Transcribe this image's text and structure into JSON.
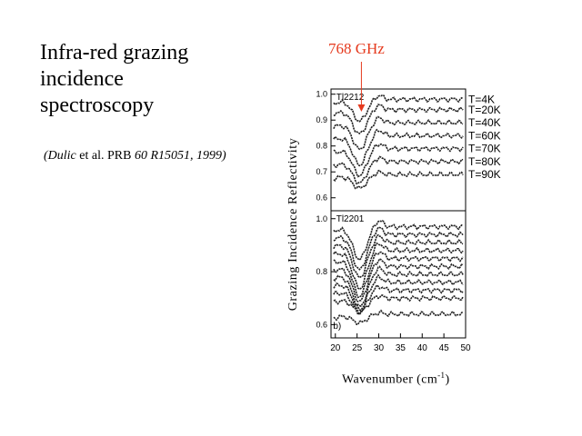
{
  "title_lines": [
    "Infra-red grazing",
    "incidence",
    "spectroscopy"
  ],
  "citation": {
    "authors": "(Dulic",
    "etal": "et al.",
    "journal": "PRB",
    "volume": "60 R15051, 1999)"
  },
  "annotation": {
    "label": "768 GHz",
    "color": "#e53a1e"
  },
  "chart_data": [
    {
      "type": "line",
      "panel_label": "",
      "sample": "Tl2212",
      "xlabel": "Wavenumber (cm",
      "xlabel_sup": "-1",
      "xlabel_close": ")",
      "ylabel": "Grazing Incidence Reflectivity",
      "xlim": [
        19,
        50
      ],
      "ylim": [
        0.55,
        1.02
      ],
      "y_ticks": [
        "1.0",
        "0.9",
        "0.8",
        "0.7",
        "0.6"
      ],
      "y_tick_values": [
        1.0,
        0.9,
        0.8,
        0.7,
        0.6
      ],
      "series": [
        {
          "name": "T=4K",
          "y_end": 0.98,
          "dip": 0.08
        },
        {
          "name": "T=20K",
          "y_end": 0.94,
          "dip": 0.09
        },
        {
          "name": "T=40K",
          "y_end": 0.89,
          "dip": 0.1
        },
        {
          "name": "T=60K",
          "y_end": 0.84,
          "dip": 0.11
        },
        {
          "name": "T=70K",
          "y_end": 0.79,
          "dip": 0.1
        },
        {
          "name": "T=80K",
          "y_end": 0.74,
          "dip": 0.08
        },
        {
          "name": "T=90K",
          "y_end": 0.69,
          "dip": 0.05
        }
      ],
      "arrow_x": 26
    },
    {
      "type": "line",
      "panel_label": "b)",
      "sample": "Tl2201",
      "xlim": [
        19,
        50
      ],
      "ylim": [
        0.55,
        1.03
      ],
      "y_ticks": [
        "1.0",
        "0.8",
        "0.6"
      ],
      "y_tick_values": [
        1.0,
        0.8,
        0.6
      ],
      "x_ticks": [
        "20",
        "25",
        "30",
        "35",
        "40",
        "45",
        "50"
      ],
      "x_tick_values": [
        20,
        25,
        30,
        35,
        40,
        45,
        50
      ],
      "series": [
        {
          "y_end": 0.97,
          "dip": 0.12
        },
        {
          "y_end": 0.94,
          "dip": 0.13
        },
        {
          "y_end": 0.91,
          "dip": 0.13
        },
        {
          "y_end": 0.88,
          "dip": 0.14
        },
        {
          "y_end": 0.85,
          "dip": 0.14
        },
        {
          "y_end": 0.82,
          "dip": 0.13
        },
        {
          "y_end": 0.79,
          "dip": 0.12
        },
        {
          "y_end": 0.76,
          "dip": 0.1
        },
        {
          "y_end": 0.73,
          "dip": 0.08
        },
        {
          "y_end": 0.7,
          "dip": 0.05
        },
        {
          "y_end": 0.64,
          "dip": 0.03
        }
      ]
    }
  ]
}
